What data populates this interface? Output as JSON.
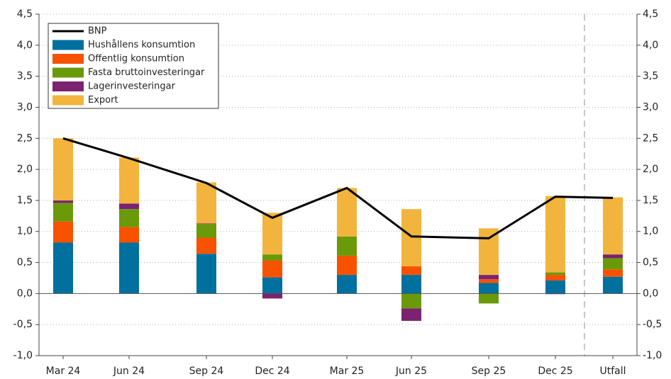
{
  "chart_data": {
    "type": "bar",
    "stacked": true,
    "categories": [
      "Mar 24",
      "Jun 24",
      "Sep 24",
      "Dec 24",
      "Mar 25",
      "Jun 25",
      "Sep 25",
      "Dec 25",
      "Utfall"
    ],
    "series": [
      {
        "name": "BNP",
        "type": "line",
        "color": "#000000",
        "values": [
          2.5,
          2.18,
          1.78,
          1.22,
          1.7,
          0.92,
          0.89,
          1.56,
          1.54
        ]
      },
      {
        "name": "Hushållens konsumtion",
        "color": "#00709e",
        "values": [
          0.82,
          0.82,
          0.64,
          0.26,
          0.3,
          0.3,
          0.17,
          0.21,
          0.27
        ]
      },
      {
        "name": "Offentlig konsumtion",
        "color": "#f75200",
        "values": [
          0.34,
          0.25,
          0.26,
          0.27,
          0.31,
          0.14,
          0.06,
          0.09,
          0.12
        ]
      },
      {
        "name": "Fasta bruttoinvesteringar",
        "color": "#6a9a0a",
        "values": [
          0.3,
          0.29,
          0.22,
          0.1,
          0.31,
          -0.24,
          -0.16,
          0.04,
          0.18
        ]
      },
      {
        "name": "Lagerinvesteringar",
        "color": "#7b2270",
        "values": [
          0.04,
          0.09,
          0.01,
          -0.08,
          0,
          -0.2,
          0.07,
          -0.01,
          0.06
        ]
      },
      {
        "name": "Export",
        "color": "#f2b43c",
        "values": [
          1.0,
          0.74,
          0.66,
          0.67,
          0.78,
          0.92,
          0.75,
          1.23,
          0.92
        ]
      }
    ],
    "ylim": [
      -1,
      4.5
    ],
    "yticks": [
      {
        "value": -1,
        "label": "-1,0"
      },
      {
        "value": -0.5,
        "label": "-0,5"
      },
      {
        "value": 0,
        "label": "0,0"
      },
      {
        "value": 0.5,
        "label": "0,5"
      },
      {
        "value": 1,
        "label": "1,0"
      },
      {
        "value": 1.5,
        "label": "1,5"
      },
      {
        "value": 2,
        "label": "2,0"
      },
      {
        "value": 2.5,
        "label": "2,5"
      },
      {
        "value": 3,
        "label": "3,0"
      },
      {
        "value": 3.5,
        "label": "3,5"
      },
      {
        "value": 4,
        "label": "4,0"
      },
      {
        "value": 4.5,
        "label": "4,5"
      }
    ],
    "y2lim": [
      -1,
      4.5
    ],
    "y2ticks": [
      {
        "value": -1,
        "label": "-1,0"
      },
      {
        "value": -0.5,
        "label": "-0,5"
      },
      {
        "value": 0,
        "label": "0,0"
      },
      {
        "value": 0.5,
        "label": "0,5"
      },
      {
        "value": 1,
        "label": "1,0"
      },
      {
        "value": 1.5,
        "label": "1,5"
      },
      {
        "value": 2,
        "label": "2,0"
      },
      {
        "value": 2.5,
        "label": "2,5"
      },
      {
        "value": 3,
        "label": "3,0"
      },
      {
        "value": 3.5,
        "label": "3,5"
      },
      {
        "value": 4,
        "label": "4,0"
      },
      {
        "value": 4.5,
        "label": "4,5"
      }
    ],
    "grid": true,
    "legend": "top-left"
  }
}
